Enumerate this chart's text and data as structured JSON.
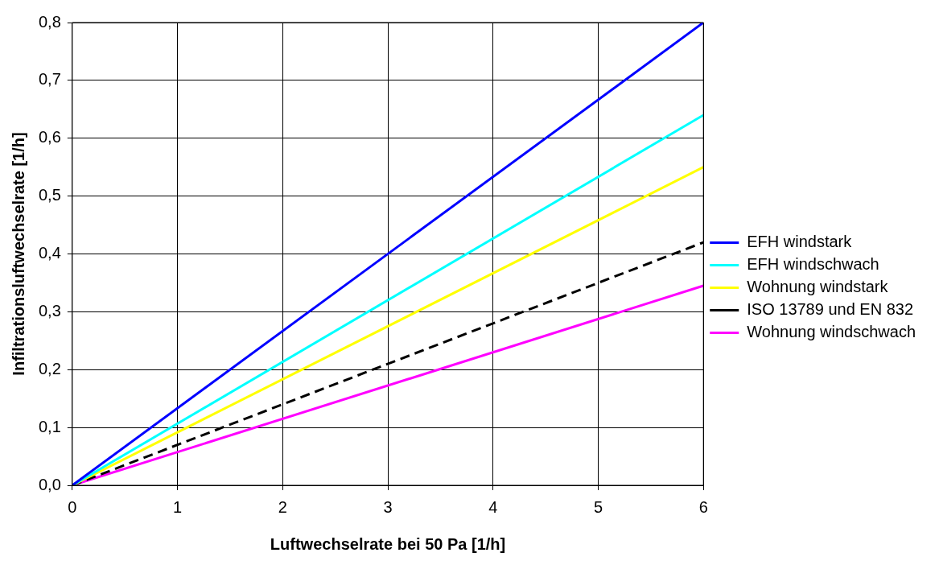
{
  "chart_data": {
    "type": "line",
    "xlabel": "Luftwechselrate bei 50 Pa [1/h]",
    "ylabel": "Infiltrationsluftwechselrate [1/h]",
    "x": [
      0,
      6
    ],
    "series": [
      {
        "name": "EFH windstark",
        "color": "#0000ff",
        "values": [
          0,
          0.8
        ]
      },
      {
        "name": "EFH windschwach",
        "color": "#00ffff",
        "values": [
          0,
          0.64
        ]
      },
      {
        "name": "Wohnung windstark",
        "color": "#ffff00",
        "values": [
          0,
          0.55
        ]
      },
      {
        "name": "ISO 13789 und EN 832",
        "color": "#000000",
        "values": [
          0,
          0.42
        ],
        "line_style": "dashed"
      },
      {
        "name": "Wohnung windschwach",
        "color": "#ff00ff",
        "values": [
          0,
          0.345
        ]
      }
    ],
    "xlim": [
      0,
      6
    ],
    "xticks": [
      0,
      1,
      2,
      3,
      4,
      5,
      6
    ],
    "ylim": [
      0,
      0.8
    ],
    "yticks": [
      {
        "value": 0,
        "label": "0,0"
      },
      {
        "value": 0.1,
        "label": "0,1"
      },
      {
        "value": 0.2,
        "label": "0,2"
      },
      {
        "value": 0.3,
        "label": "0,3"
      },
      {
        "value": 0.4,
        "label": "0,4"
      },
      {
        "value": 0.5,
        "label": "0,5"
      },
      {
        "value": 0.6,
        "label": "0,6"
      },
      {
        "value": 0.7,
        "label": "0,7"
      },
      {
        "value": 0.8,
        "label": "0,8"
      }
    ],
    "grid": true,
    "legend": "right",
    "marker": "none"
  }
}
